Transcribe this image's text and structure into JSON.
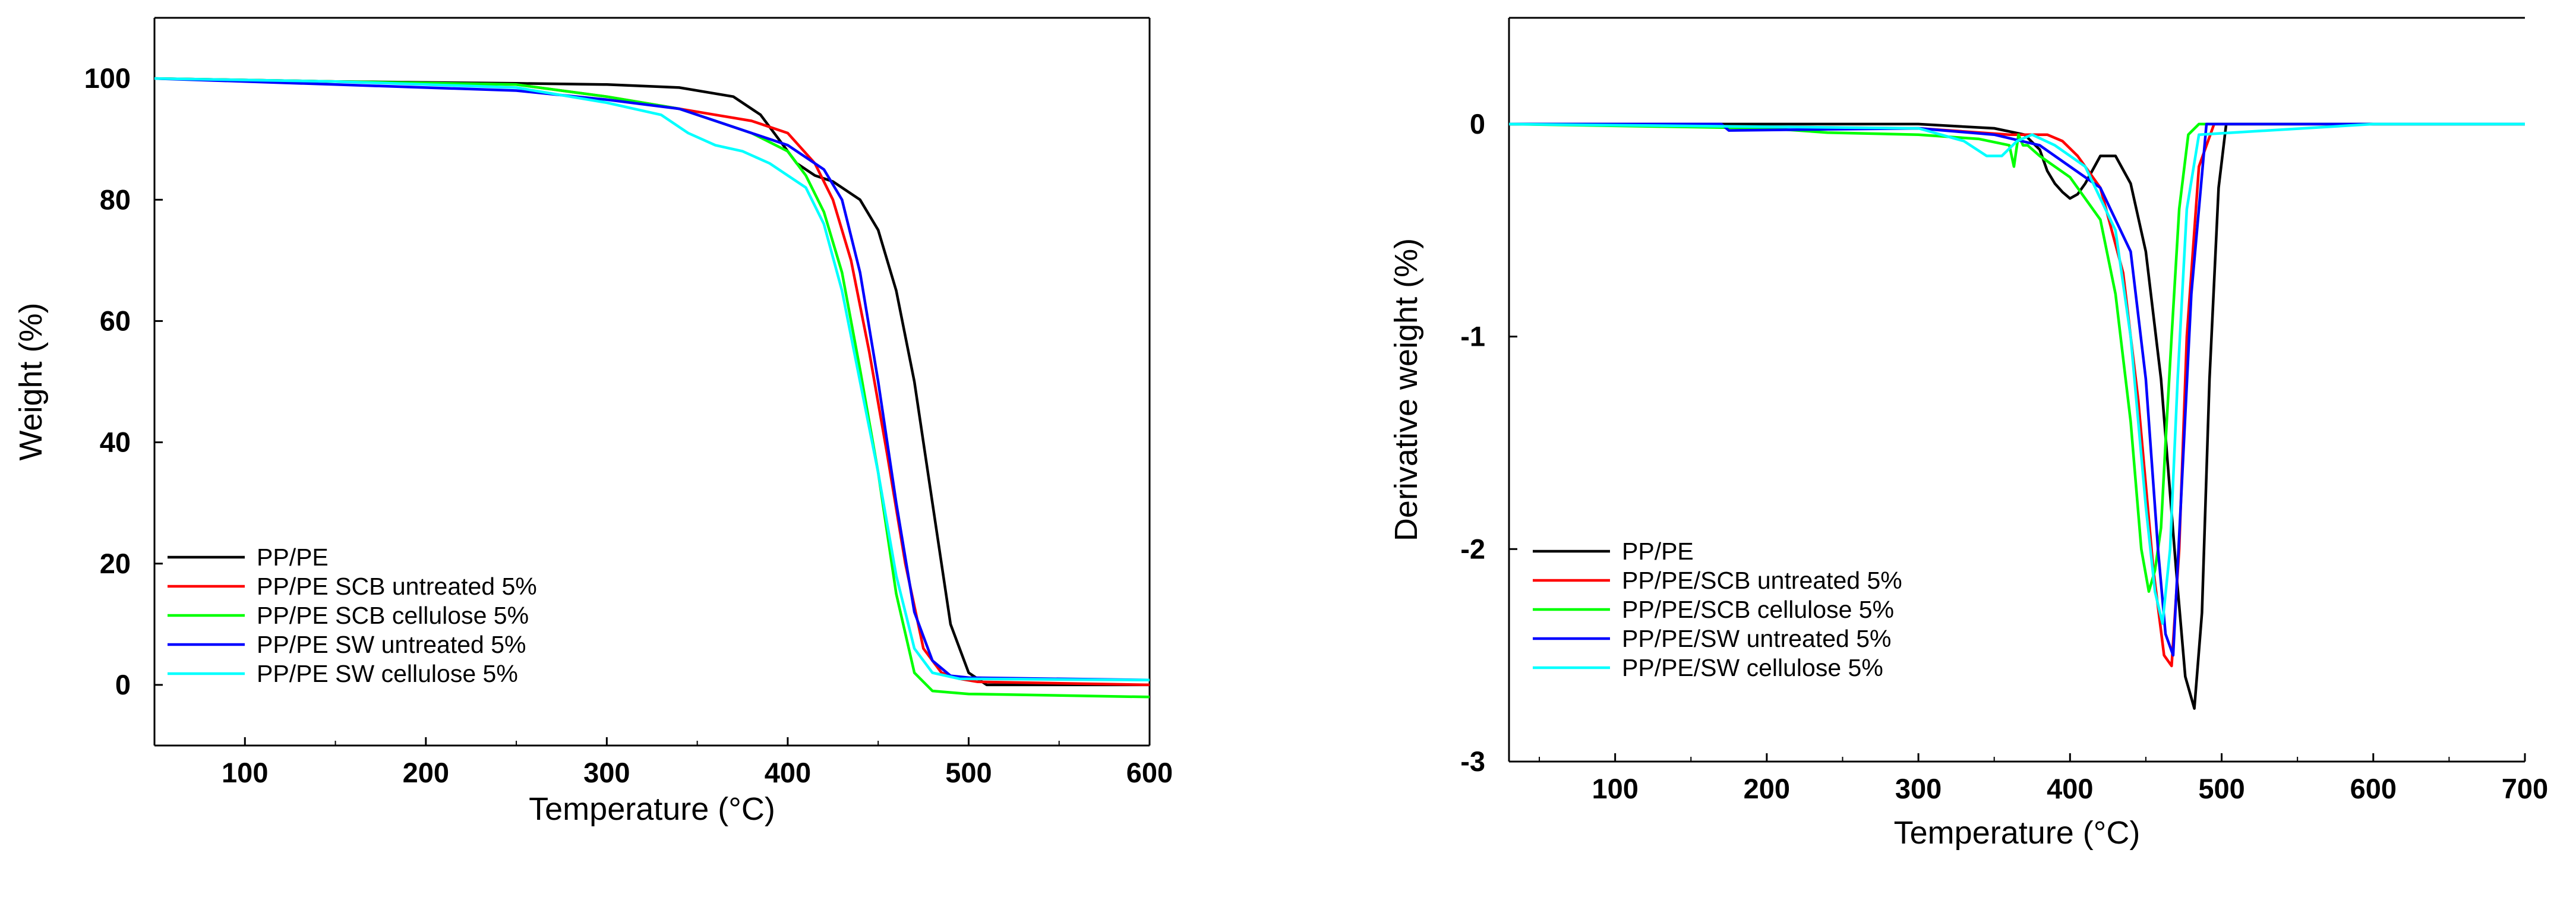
{
  "chart_data": [
    {
      "type": "line",
      "xlabel": "Temperature (°C)",
      "ylabel": "Weight (%)",
      "xlim": [
        50,
        600
      ],
      "ylim": [
        -10,
        110
      ],
      "xticks": [
        100,
        200,
        300,
        400,
        500,
        600
      ],
      "yticks": [
        0,
        20,
        40,
        60,
        80,
        100
      ],
      "legend_position": "bottom-left",
      "series": [
        {
          "name": "PP/PE",
          "color": "#000000",
          "x": [
            50,
            150,
            250,
            300,
            340,
            370,
            385,
            395,
            405,
            415,
            425,
            440,
            450,
            460,
            470,
            480,
            490,
            500,
            510,
            600
          ],
          "y": [
            100,
            99.5,
            99.2,
            99,
            98.5,
            97,
            94,
            90,
            86,
            84,
            83,
            80,
            75,
            65,
            50,
            30,
            10,
            2,
            0,
            0
          ]
        },
        {
          "name": "PP/PE SCB untreated 5%",
          "color": "#ff0000",
          "x": [
            50,
            150,
            250,
            300,
            340,
            360,
            380,
            400,
            415,
            425,
            435,
            445,
            455,
            465,
            475,
            485,
            495,
            505,
            600
          ],
          "y": [
            100,
            99.5,
            99,
            97,
            95,
            94,
            93,
            91,
            86,
            80,
            70,
            55,
            38,
            20,
            6,
            2,
            1,
            0.5,
            0
          ]
        },
        {
          "name": "PP/PE SCB cellulose 5%",
          "color": "#00ff00",
          "x": [
            50,
            150,
            250,
            300,
            340,
            360,
            380,
            400,
            410,
            420,
            430,
            440,
            450,
            460,
            470,
            480,
            500,
            600
          ],
          "y": [
            100,
            99.5,
            99,
            97,
            95,
            93,
            91,
            88,
            84,
            78,
            68,
            52,
            35,
            15,
            2,
            -1,
            -1.5,
            -2
          ]
        },
        {
          "name": "PP/PE SW untreated 5%",
          "color": "#0000ff",
          "x": [
            50,
            150,
            250,
            300,
            340,
            360,
            380,
            400,
            420,
            430,
            440,
            450,
            460,
            470,
            480,
            490,
            500,
            600
          ],
          "y": [
            100,
            99,
            98,
            96.5,
            95,
            93,
            91,
            89,
            85,
            80,
            68,
            50,
            30,
            12,
            4,
            1.5,
            1.2,
            0.8
          ]
        },
        {
          "name": "PP/PE SW cellulose 5%",
          "color": "#00ffff",
          "x": [
            50,
            150,
            250,
            300,
            330,
            345,
            360,
            375,
            390,
            400,
            410,
            420,
            430,
            440,
            450,
            460,
            470,
            480,
            495,
            600
          ],
          "y": [
            100,
            99.5,
            98.5,
            96,
            94,
            91,
            89,
            88,
            86,
            84,
            82,
            76,
            65,
            50,
            35,
            18,
            6,
            2,
            1,
            0.8
          ]
        }
      ]
    },
    {
      "type": "line",
      "xlabel": "Temperature (°C)",
      "ylabel": "Derivative weight (%)",
      "xlim": [
        30,
        700
      ],
      "ylim": [
        -3,
        0.5
      ],
      "xticks": [
        100,
        200,
        300,
        400,
        500,
        600,
        700
      ],
      "yticks": [
        0,
        -1,
        -2,
        -3
      ],
      "legend_position": "bottom-left",
      "series": [
        {
          "name": "PP/PE",
          "color": "#000000",
          "x": [
            30,
            300,
            350,
            370,
            380,
            385,
            390,
            395,
            400,
            405,
            410,
            420,
            430,
            440,
            450,
            460,
            470,
            476,
            482,
            487,
            492,
            498,
            503,
            600,
            700
          ],
          "y": [
            0,
            0,
            -0.02,
            -0.05,
            -0.12,
            -0.22,
            -0.28,
            -0.32,
            -0.35,
            -0.33,
            -0.28,
            -0.15,
            -0.15,
            -0.28,
            -0.6,
            -1.2,
            -2.1,
            -2.6,
            -2.75,
            -2.3,
            -1.2,
            -0.3,
            0,
            0,
            0
          ]
        },
        {
          "name": "PP/PE/SCB untreated 5%",
          "color": "#ff0000",
          "x": [
            30,
            300,
            360,
            375,
            385,
            395,
            405,
            420,
            435,
            445,
            455,
            462,
            467,
            472,
            477,
            485,
            495,
            600,
            700
          ],
          "y": [
            0,
            -0.02,
            -0.05,
            -0.05,
            -0.05,
            -0.08,
            -0.15,
            -0.3,
            -0.7,
            -1.3,
            -2.1,
            -2.5,
            -2.55,
            -2,
            -1,
            -0.2,
            0,
            0,
            0
          ]
        },
        {
          "name": "PP/PE/SCB cellulose 5%",
          "color": "#00ff00",
          "x": [
            30,
            200,
            240,
            300,
            340,
            360,
            363,
            366,
            369,
            372,
            380,
            400,
            420,
            430,
            440,
            447,
            452,
            456,
            460,
            463,
            467,
            472,
            478,
            485,
            600,
            700
          ],
          "y": [
            0,
            -0.02,
            -0.04,
            -0.05,
            -0.07,
            -0.1,
            -0.2,
            -0.05,
            -0.1,
            -0.1,
            -0.15,
            -0.25,
            -0.45,
            -0.8,
            -1.4,
            -2.0,
            -2.2,
            -2.1,
            -1.9,
            -1.5,
            -1,
            -0.4,
            -0.05,
            0,
            0,
            0
          ]
        },
        {
          "name": "PP/PE/SW untreated 5%",
          "color": "#0000ff",
          "x": [
            30,
            170,
            175,
            300,
            350,
            380,
            390,
            400,
            420,
            440,
            450,
            458,
            463,
            468,
            473,
            480,
            490,
            600,
            700
          ],
          "y": [
            0,
            0,
            -0.03,
            -0.02,
            -0.05,
            -0.1,
            -0.15,
            -0.2,
            -0.3,
            -0.6,
            -1.2,
            -2.0,
            -2.4,
            -2.5,
            -1.8,
            -0.8,
            0,
            0,
            0
          ]
        },
        {
          "name": "PP/PE/SW cellulose 5%",
          "color": "#00ffff",
          "x": [
            30,
            300,
            330,
            345,
            355,
            365,
            375,
            390,
            410,
            430,
            440,
            450,
            456,
            461,
            466,
            471,
            477,
            485,
            600,
            700
          ],
          "y": [
            0,
            -0.02,
            -0.08,
            -0.15,
            -0.15,
            -0.08,
            -0.05,
            -0.1,
            -0.2,
            -0.5,
            -1,
            -1.8,
            -2.2,
            -2.35,
            -2,
            -1.2,
            -0.4,
            -0.05,
            0,
            0
          ]
        }
      ]
    }
  ]
}
